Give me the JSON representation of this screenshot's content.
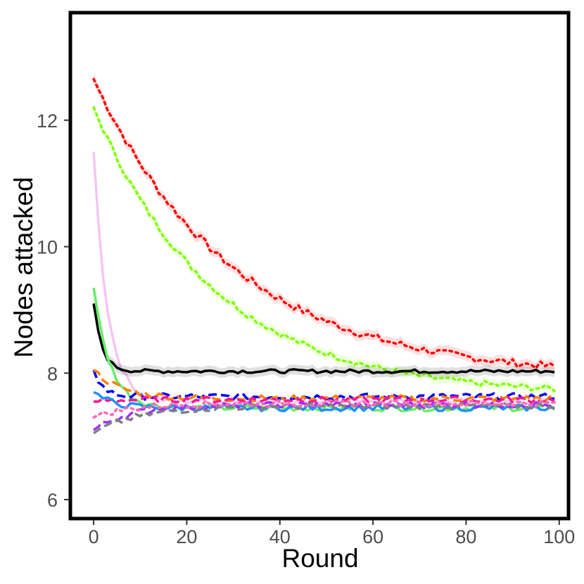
{
  "chart_data": {
    "type": "line",
    "title": "",
    "xlabel": "Round",
    "ylabel": "Nodes attacked",
    "xlim": [
      -5,
      102
    ],
    "ylim": [
      5.7,
      13.7
    ],
    "xticks": [
      0,
      20,
      40,
      60,
      80,
      100
    ],
    "yticks": [
      6,
      8,
      10,
      12
    ],
    "grid": false,
    "legend": "none",
    "series": [
      {
        "color": "#ff0000",
        "dash": "dotted",
        "band": true,
        "start": 12.65,
        "end": 7.93,
        "tau": 30,
        "noise": 0.06
      },
      {
        "color": "#7fff00",
        "dash": "dotted",
        "band": true,
        "start": 12.2,
        "end": 7.65,
        "tau": 26,
        "noise": 0.05
      },
      {
        "color": "#f3c6f3",
        "dash": "solid",
        "band": false,
        "start": 11.5,
        "end": 7.55,
        "tau": 3,
        "noise": 0.05
      },
      {
        "color": "#000000",
        "dash": "solid",
        "band": true,
        "start": 9.1,
        "end": 8.03,
        "tau": 1.8,
        "noise": 0.03
      },
      {
        "color": "#66ee66",
        "dash": "solid",
        "band": false,
        "start": 9.35,
        "end": 7.45,
        "tau": 3.5,
        "noise": 0.05
      },
      {
        "color": "#0000ff",
        "dash": "dashed",
        "band": false,
        "start": 8.05,
        "end": 7.63,
        "tau": 2,
        "noise": 0.05
      },
      {
        "color": "#ff7f00",
        "dash": "dashed",
        "band": false,
        "start": 8.05,
        "end": 7.6,
        "tau": 6,
        "noise": 0.05
      },
      {
        "color": "#ff1493",
        "dash": "dashed",
        "band": false,
        "start": 7.55,
        "end": 7.58,
        "tau": 3,
        "noise": 0.05
      },
      {
        "color": "#1e90ff",
        "dash": "solid",
        "band": false,
        "start": 7.7,
        "end": 7.45,
        "tau": 4,
        "noise": 0.05
      },
      {
        "color": "#9b30ff",
        "dash": "dashed",
        "band": false,
        "start": 7.1,
        "end": 7.5,
        "tau": 8,
        "noise": 0.05
      },
      {
        "color": "#808080",
        "dash": "dashed",
        "band": false,
        "start": 7.05,
        "end": 7.48,
        "tau": 10,
        "noise": 0.05
      },
      {
        "color": "#ff69b4",
        "dash": "dotted",
        "band": false,
        "start": 7.3,
        "end": 7.52,
        "tau": 8,
        "noise": 0.05
      }
    ]
  }
}
